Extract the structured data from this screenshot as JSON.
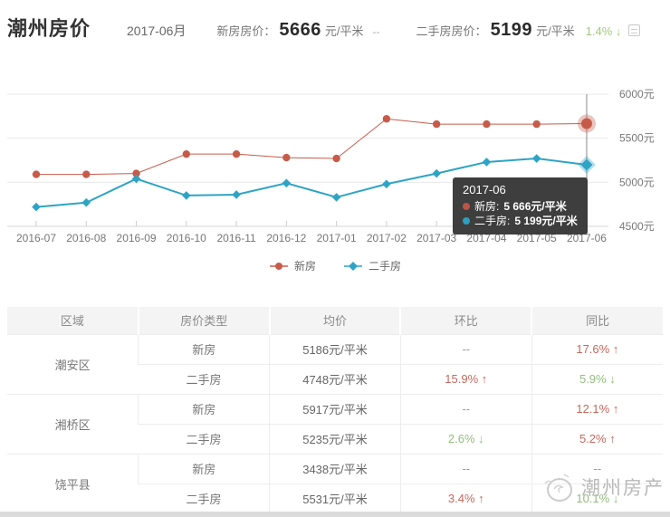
{
  "colors": {
    "new_house": "#c75b4a",
    "new_house_highlight": "#e25840",
    "second_hand": "#2ea4c5",
    "trend_up": "#c5695c",
    "trend_down": "#93bd7f",
    "header_change_down": "#a2c77e",
    "tooltip_bg": "#343434"
  },
  "header": {
    "title": "潮州房价",
    "month": "2017-06月",
    "new_price_label": "新房房价：",
    "new_price": "5666",
    "new_price_unit": "元/平米",
    "new_price_change": "--",
    "second_price_label": "二手房房价：",
    "second_price": "5199",
    "second_price_unit": "元/平米",
    "second_price_change": "1.4% ↓"
  },
  "chart_data": {
    "type": "line",
    "x": [
      "2016-07",
      "2016-08",
      "2016-09",
      "2016-10",
      "2016-11",
      "2016-12",
      "2017-01",
      "2017-02",
      "2017-03",
      "2017-04",
      "2017-05",
      "2017-06"
    ],
    "series": [
      {
        "name": "新房",
        "color": "#c75b4a",
        "marker": "circle",
        "line_width": 1,
        "values": [
          5090,
          5090,
          5100,
          5320,
          5320,
          5280,
          5270,
          5720,
          5660,
          5660,
          5660,
          5666
        ]
      },
      {
        "name": "二手房",
        "color": "#2ea4c5",
        "marker": "diamond",
        "line_width": 2,
        "values": [
          4720,
          4770,
          5040,
          4850,
          4860,
          4990,
          4830,
          4980,
          5100,
          5230,
          5270,
          5199
        ]
      }
    ],
    "ylim": [
      4500,
      6000
    ],
    "yticks": [
      6000,
      5500,
      5000,
      4500
    ],
    "y_unit": "元",
    "grid": true,
    "legend_position": "bottom",
    "highlight_index": 11,
    "highlight_label": "2017-06"
  },
  "tooltip": {
    "title": "2017-06",
    "rows": [
      {
        "label": "新房:",
        "value": "5 666元/平米"
      },
      {
        "label": "二手房:",
        "value": "5 199元/平米"
      }
    ]
  },
  "table": {
    "headers": [
      "区域",
      "房价类型",
      "均价",
      "环比",
      "同比"
    ],
    "regions": [
      {
        "name": "潮安区",
        "rows": [
          {
            "type": "新房",
            "price": "5186元/平米",
            "mom": "--",
            "mom_trend": "na",
            "yoy": "17.6% ↑",
            "yoy_trend": "up"
          },
          {
            "type": "二手房",
            "price": "4748元/平米",
            "mom": "15.9% ↑",
            "mom_trend": "up",
            "yoy": "5.9% ↓",
            "yoy_trend": "down"
          }
        ]
      },
      {
        "name": "湘桥区",
        "rows": [
          {
            "type": "新房",
            "price": "5917元/平米",
            "mom": "--",
            "mom_trend": "na",
            "yoy": "12.1% ↑",
            "yoy_trend": "up"
          },
          {
            "type": "二手房",
            "price": "5235元/平米",
            "mom": "2.6% ↓",
            "mom_trend": "down",
            "yoy": "5.2% ↑",
            "yoy_trend": "up"
          }
        ]
      },
      {
        "name": "饶平县",
        "rows": [
          {
            "type": "新房",
            "price": "3438元/平米",
            "mom": "--",
            "mom_trend": "na",
            "yoy": "--",
            "yoy_trend": "na"
          },
          {
            "type": "二手房",
            "price": "5531元/平米",
            "mom": "3.4% ↑",
            "mom_trend": "up",
            "yoy": "10.1% ↓",
            "yoy_trend": "down"
          }
        ]
      }
    ]
  },
  "watermark": {
    "text": "潮州房产"
  }
}
